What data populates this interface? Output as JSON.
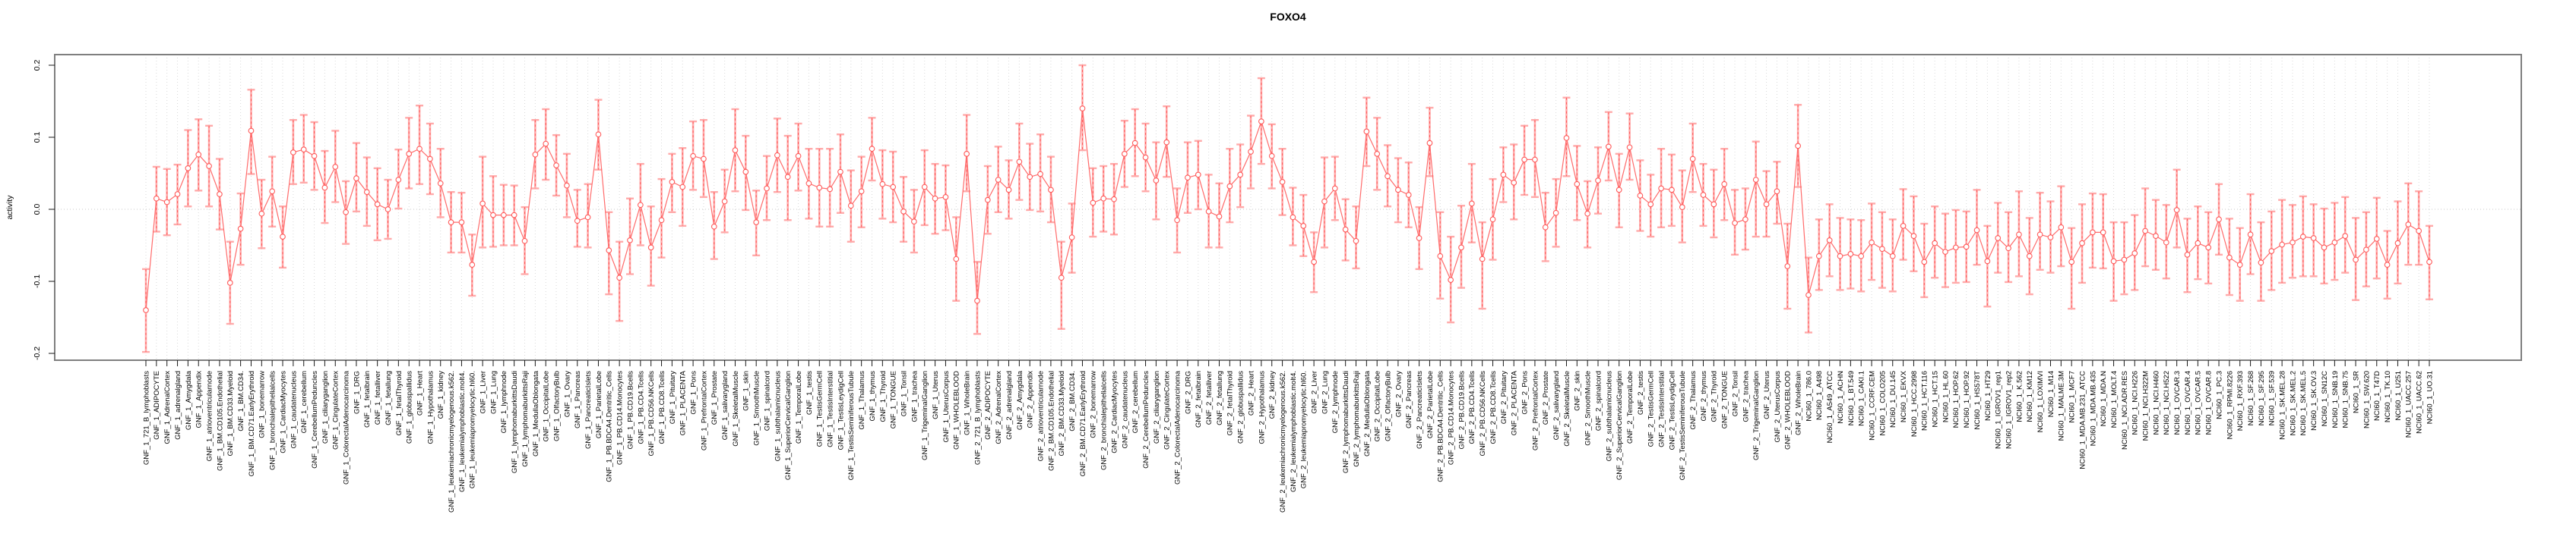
{
  "chart_data": {
    "type": "scatter",
    "subtype": "errorbar-series",
    "title": "FOXO4",
    "xlabel": "",
    "ylabel": "activity",
    "ylim": [
      -0.22,
      0.22
    ],
    "y_ticks": [
      "0.2",
      "0.1",
      "0.0",
      "-0.1",
      "-0.2"
    ],
    "y_tick_values": [
      0.2,
      0.1,
      0.0,
      -0.1,
      -0.2
    ],
    "grid": "vertical-dotted-per-category, dotted-zero-line",
    "legend": "none",
    "colors": {
      "point": "#ff5a5a",
      "line": "#ff6b6b",
      "whisker": "#ffaaaa",
      "grid": "#d9d9d9",
      "zero_line": "#c8c8c8",
      "box": "#7f7f7f",
      "tick": "#1a1a1a"
    },
    "categories": [
      "GNF_1_721_B_lymphoblasts",
      "GNF_1_ADIPOCYTE",
      "GNF_1_AdrenalCortex",
      "GNF_1_adrenalgland",
      "GNF_1_Amygdala",
      "GNF_1_Appendix",
      "GNF_1_atrioventricularnode",
      "GNF_1_BM.CD105.Endothelial",
      "GNF_1_BM.CD33.Myeloid",
      "GNF_1_BM.CD34.",
      "GNF_1_BM.CD71.EarlyErythroid",
      "GNF_1_bonemarrow",
      "GNF_1_bronchialepithelialcells",
      "GNF_1_CardiacMyocytes",
      "GNF_1_caudatenucleus",
      "GNF_1_cerebellum",
      "GNF_1_CerebellumPeduncles",
      "GNF_1_ciliaryganglion",
      "GNF_1_CingulateCortex",
      "GNF_1_ColorectalAdenocarcinoma",
      "GNF_1_DRG",
      "GNF_1_fetalbrain",
      "GNF_1_fetalliver",
      "GNF_1_fetallung",
      "GNF_1_fetalThyroid",
      "GNF_1_globuspallidus",
      "GNF_1_Heart",
      "GNF_1_Hypothalamus",
      "GNF_1_kidney",
      "GNF_1_leukemiachronicmyelogenous.k562.",
      "GNF_1_leukemialymphoblastic.molt4.",
      "GNF_1_leukemiapromyelocytic.hl60.",
      "GNF_1_Liver",
      "GNF_1_Lung",
      "GNF_1_lymphnode",
      "GNF_1_lymphomaburkittsDaudi",
      "GNF_1_lymphomaburkittsRaji",
      "GNF_1_MedullaOblongata",
      "GNF_1_OccipitalLobe",
      "GNF_1_OlfactoryBulb",
      "GNF_1_Ovary",
      "GNF_1_Pancreas",
      "GNF_1_PancreaticIslets",
      "GNF_1_ParietalLobe",
      "GNF_1_PB.BDCA4.Dentritic_Cells",
      "GNF_1_PB.CD14.Monocytes",
      "GNF_1_PB.CD19.Bcells",
      "GNF_1_PB.CD4.Tcells",
      "GNF_1_PB.CD56.NKCells",
      "GNF_1_PB.CD8.Tcells",
      "GNF_1_Pituitary",
      "GNF_1_PLACENTA",
      "GNF_1_Pons",
      "GNF_1_PrefrontalCortex",
      "GNF_1_Prostate",
      "GNF_1_salivarygland",
      "GNF_1_SkeletalMuscle",
      "GNF_1_skin",
      "GNF_1_SmoothMuscle",
      "GNF_1_spinalcord",
      "GNF_1_subthalamicnucleus",
      "GNF_1_SuperiorCervicalGanglion",
      "GNF_1_TemporalLobe",
      "GNF_1_testis",
      "GNF_1_TestisGermCell",
      "GNF_1_TestisInterstitial",
      "GNF_1_TestisLeydigCell",
      "GNF_1_TestisSeminiferousTubule",
      "GNF_1_Thalamus",
      "GNF_1_thymus",
      "GNF_1_Thyroid",
      "GNF_1_TONGUE",
      "GNF_1_Tonsil",
      "GNF_1_trachea",
      "GNF_1_TrigeminalGanglion",
      "GNF_1_Uterus",
      "GNF_1_UterusCorpus",
      "GNF_1_WHOLEBLOOD",
      "GNF_1_WholeBrain",
      "GNF_2_721_B_lymphoblasts",
      "GNF_2_ADIPOCYTE",
      "GNF_2_AdrenalCortex",
      "GNF_2_adrenalgland",
      "GNF_2_Amygdala",
      "GNF_2_Appendix",
      "GNF_2_atrioventricularnode",
      "GNF_2_BM.CD105.Endothelial",
      "GNF_2_BM.CD33.Myeloid",
      "GNF_2_BM.CD34.",
      "GNF_2_BM.CD71.EarlyErythroid",
      "GNF_2_bonemarrow",
      "GNF_2_bronchialepithelialcells",
      "GNF_2_CardiacMyocytes",
      "GNF_2_caudatenucleus",
      "GNF_2_cerebellum",
      "GNF_2_CerebellumPeduncles",
      "GNF_2_ciliaryganglion",
      "GNF_2_CingulateCortex",
      "GNF_2_ColorectalAdenocarcinoma",
      "GNF_2_DRG",
      "GNF_2_fetalbrain",
      "GNF_2_fetalliver",
      "GNF_2_fetallung",
      "GNF_2_fetalThyroid",
      "GNF_2_globuspallidus",
      "GNF_2_Heart",
      "GNF_2_Hypothalamus",
      "GNF_2_kidney",
      "GNF_2_leukemiachronicmyelogenous.k562.",
      "GNF_2_leukemialymphoblastic.molt4.",
      "GNF_2_leukemiapromyelocytic.hl60.",
      "GNF_2_Liver",
      "GNF_2_Lung",
      "GNF_2_lymphnode",
      "GNF_2_lymphomaburkittsDaudi",
      "GNF_2_lymphomaburkittsRaji",
      "GNF_2_MedullaOblongata",
      "GNF_2_OccipitalLobe",
      "GNF_2_OlfactoryBulb",
      "GNF_2_Ovary",
      "GNF_2_Pancreas",
      "GNF_2_PancreaticIslets",
      "GNF_2_ParietalLobe",
      "GNF_2_PB.BDCA4.Dentritic_Cells",
      "GNF_2_PB.CD14.Monocytes",
      "GNF_2_PB.CD19.Bcells",
      "GNF_2_PB.CD4.Tcells",
      "GNF_2_PB.CD56.NKCells",
      "GNF_2_PB.CD8.Tcells",
      "GNF_2_Pituitary",
      "GNF_2_PLACENTA",
      "GNF_2_Pons",
      "GNF_2_PrefrontalCortex",
      "GNF_2_Prostate",
      "GNF_2_salivarygland",
      "GNF_2_SkeletalMuscle",
      "GNF_2_skin",
      "GNF_2_SmoothMuscle",
      "GNF_2_spinalcord",
      "GNF_2_subthalamicnucleus",
      "GNF_2_SuperiorCervicalGanglion",
      "GNF_2_TemporalLobe",
      "GNF_2_testis",
      "GNF_2_TestisGermCell",
      "GNF_2_TestisInterstitial",
      "GNF_2_TestisLeydigCell",
      "GNF_2_TestisSeminiferousTubule",
      "GNF_2_Thalamus",
      "GNF_2_thymus",
      "GNF_2_Thyroid",
      "GNF_2_TONGUE",
      "GNF_2_Tonsil",
      "GNF_2_trachea",
      "GNF_2_TrigeminalGanglion",
      "GNF_2_Uterus",
      "GNF_2_UterusCorpus",
      "GNF_2_WHOLEBLOOD",
      "GNF_2_WholeBrain",
      "NCI60_1_786.0",
      "NCI60_1_A498",
      "NCI60_1_A549_ATCC",
      "NCI60_1_ACHN",
      "NCI60_1_BT.549",
      "NCI60_1_CAKI.1",
      "NCI60_1_CCRF.CEM",
      "NCI60_1_COLO205",
      "NCI60_1_DU.145",
      "NCI60_1_EKVX",
      "NCI60_1_HCC.2998",
      "NCI60_1_HCT.116",
      "NCI60_1_HCT.15",
      "NCI60_1_HL.60",
      "NCI60_1_HOP.62",
      "NCI60_1_HOP.92",
      "NCI60_1_HS578T",
      "NCI60_1_HT29",
      "NCI60_1_IGROV1_rep1",
      "NCI60_1_IGROV1_rep2",
      "NCI60_1_K.562",
      "NCI60_1_KM12",
      "NCI60_1_LOXIMVI",
      "NCI60_1_M14",
      "NCI60_1_MALME.3M",
      "NCI60_1_MCF7",
      "NCI60_1_MDA.MB.231_ATCC",
      "NCI60_1_MDA.MB.435",
      "NCI60_1_MDA.N",
      "NCI60_1_MOLT.4",
      "NCI60_1_NCI.ADR.RES",
      "NCI60_1_NCI.H226",
      "NCI60_1_NCI.H322M",
      "NCI60_1_NCI.H460",
      "NCI60_1_NCI.H522",
      "NCI60_1_OVCAR.3",
      "NCI60_1_OVCAR.4",
      "NCI60_1_OVCAR.5",
      "NCI60_1_OVCAR.8",
      "NCI60_1_PC.3",
      "NCI60_1_RPMI.8226",
      "NCI60_1_RXF.393",
      "NCI60_1_SF.268",
      "NCI60_1_SF.295",
      "NCI60_1_SF.539",
      "NCI60_1_SK.MEL.28",
      "NCI60_1_SK.MEL.2",
      "NCI60_1_SK.MEL.5",
      "NCI60_1_SK.OV.3",
      "NCI60_1_SN12C",
      "NCI60_1_SNB.19",
      "NCI60_1_SNB.75",
      "NCI60_1_SR",
      "NCI60_1_SW.620",
      "NCI60_1_T47D",
      "NCI60_1_TK.10",
      "NCI60_1_U251",
      "NCI60_1_UACC.257",
      "NCI60_1_UACC.62",
      "NCI60_1_UO.31"
    ],
    "series": [
      {
        "name": "activity",
        "values": [
          -0.14,
          0.015,
          0.01,
          0.021,
          0.057,
          0.076,
          0.06,
          0.021,
          -0.102,
          -0.027,
          0.109,
          -0.006,
          0.025,
          -0.038,
          0.079,
          0.083,
          0.074,
          0.03,
          0.059,
          -0.004,
          0.043,
          0.024,
          0.007,
          0.0,
          0.041,
          0.077,
          0.084,
          0.07,
          0.036,
          -0.018,
          -0.018,
          -0.077,
          0.008,
          -0.008,
          -0.008,
          -0.008,
          -0.044,
          0.076,
          0.091,
          0.061,
          0.033,
          -0.016,
          -0.011,
          0.104,
          -0.057,
          -0.095,
          -0.043,
          0.006,
          -0.053,
          -0.015,
          0.038,
          0.031,
          0.074,
          0.07,
          -0.024,
          0.011,
          0.082,
          0.052,
          -0.018,
          0.029,
          0.075,
          0.045,
          0.074,
          0.036,
          0.03,
          0.028,
          0.052,
          0.005,
          0.025,
          0.084,
          0.035,
          0.031,
          -0.003,
          -0.017,
          0.031,
          0.015,
          0.017,
          -0.069,
          0.077,
          -0.127,
          0.013,
          0.041,
          0.027,
          0.066,
          0.045,
          0.049,
          0.027,
          -0.095,
          -0.039,
          0.14,
          0.009,
          0.015,
          0.014,
          0.077,
          0.092,
          0.072,
          0.04,
          0.093,
          -0.015,
          0.044,
          0.048,
          -0.003,
          -0.01,
          0.032,
          0.048,
          0.08,
          0.122,
          0.074,
          0.038,
          -0.011,
          -0.023,
          -0.073,
          0.011,
          0.029,
          -0.028,
          -0.044,
          0.108,
          0.077,
          0.046,
          0.027,
          0.02,
          -0.04,
          0.092,
          -0.065,
          -0.098,
          -0.053,
          0.008,
          -0.069,
          -0.014,
          0.048,
          0.037,
          0.069,
          0.069,
          -0.025,
          -0.005,
          0.099,
          0.035,
          -0.006,
          0.04,
          0.087,
          0.027,
          0.086,
          0.019,
          0.007,
          0.029,
          0.027,
          0.003,
          0.07,
          0.02,
          0.007,
          0.035,
          -0.019,
          -0.014,
          0.041,
          0.007,
          0.025,
          -0.079,
          0.088,
          -0.119,
          -0.065,
          -0.043,
          -0.065,
          -0.062,
          -0.065,
          -0.046,
          -0.055,
          -0.065,
          -0.023,
          -0.037,
          -0.073,
          -0.047,
          -0.059,
          -0.053,
          -0.052,
          -0.029,
          -0.072,
          -0.04,
          -0.054,
          -0.035,
          -0.065,
          -0.035,
          -0.039,
          -0.025,
          -0.073,
          -0.047,
          -0.032,
          -0.032,
          -0.072,
          -0.07,
          -0.061,
          -0.03,
          -0.037,
          -0.046,
          -0.001,
          -0.063,
          -0.047,
          -0.053,
          -0.014,
          -0.067,
          -0.077,
          -0.035,
          -0.074,
          -0.058,
          -0.049,
          -0.046,
          -0.038,
          -0.04,
          -0.053,
          -0.046,
          -0.037,
          -0.07,
          -0.056,
          -0.041,
          -0.077,
          -0.047,
          -0.021,
          -0.03,
          -0.073
        ],
        "ci_low": [
          -0.198,
          -0.031,
          -0.036,
          -0.021,
          0.004,
          0.026,
          0.004,
          -0.028,
          -0.159,
          -0.077,
          0.049,
          -0.054,
          -0.024,
          -0.081,
          0.035,
          0.037,
          0.027,
          -0.019,
          0.01,
          -0.048,
          -0.003,
          -0.023,
          -0.043,
          -0.041,
          0.001,
          0.029,
          0.035,
          0.021,
          -0.011,
          -0.06,
          -0.06,
          -0.12,
          -0.053,
          -0.052,
          -0.05,
          -0.05,
          -0.09,
          0.029,
          0.041,
          0.019,
          -0.011,
          -0.052,
          -0.053,
          0.055,
          -0.118,
          -0.155,
          -0.09,
          -0.05,
          -0.106,
          -0.067,
          -0.004,
          -0.023,
          0.027,
          0.017,
          -0.069,
          -0.032,
          0.025,
          -0.001,
          -0.064,
          -0.015,
          0.024,
          -0.015,
          0.026,
          -0.013,
          -0.024,
          -0.024,
          -0.005,
          -0.045,
          -0.025,
          0.04,
          -0.013,
          -0.018,
          -0.045,
          -0.06,
          -0.022,
          -0.034,
          -0.029,
          -0.127,
          0.025,
          -0.173,
          -0.034,
          -0.004,
          -0.013,
          0.013,
          -0.001,
          -0.003,
          -0.018,
          -0.166,
          -0.088,
          0.082,
          -0.038,
          -0.031,
          -0.035,
          0.031,
          0.046,
          0.025,
          -0.014,
          0.045,
          -0.06,
          -0.005,
          0.0,
          -0.053,
          -0.053,
          -0.018,
          0.003,
          0.029,
          0.063,
          0.029,
          -0.008,
          -0.05,
          -0.065,
          -0.115,
          -0.053,
          -0.015,
          -0.071,
          -0.082,
          0.06,
          0.027,
          0.004,
          -0.018,
          -0.025,
          -0.083,
          0.046,
          -0.124,
          -0.157,
          -0.109,
          -0.046,
          -0.138,
          -0.07,
          0.01,
          -0.014,
          0.02,
          0.017,
          -0.072,
          -0.052,
          0.046,
          -0.015,
          -0.053,
          -0.006,
          0.04,
          -0.025,
          0.041,
          -0.03,
          -0.038,
          -0.025,
          -0.023,
          -0.046,
          0.024,
          -0.023,
          -0.039,
          -0.015,
          -0.063,
          -0.056,
          -0.038,
          -0.038,
          -0.02,
          -0.138,
          0.031,
          -0.171,
          -0.112,
          -0.093,
          -0.112,
          -0.11,
          -0.114,
          -0.098,
          -0.109,
          -0.114,
          -0.07,
          -0.086,
          -0.122,
          -0.095,
          -0.108,
          -0.102,
          -0.101,
          -0.077,
          -0.135,
          -0.088,
          -0.101,
          -0.093,
          -0.118,
          -0.084,
          -0.088,
          -0.079,
          -0.138,
          -0.102,
          -0.081,
          -0.082,
          -0.127,
          -0.118,
          -0.112,
          -0.079,
          -0.084,
          -0.096,
          -0.053,
          -0.115,
          -0.097,
          -0.103,
          -0.063,
          -0.119,
          -0.127,
          -0.09,
          -0.127,
          -0.112,
          -0.102,
          -0.095,
          -0.093,
          -0.093,
          -0.103,
          -0.098,
          -0.088,
          -0.126,
          -0.107,
          -0.096,
          -0.124,
          -0.103,
          -0.077,
          -0.077,
          -0.125
        ],
        "ci_high": [
          -0.083,
          0.059,
          0.056,
          0.062,
          0.11,
          0.125,
          0.116,
          0.07,
          -0.045,
          0.022,
          0.166,
          0.041,
          0.073,
          0.004,
          0.124,
          0.131,
          0.121,
          0.081,
          0.109,
          0.039,
          0.092,
          0.072,
          0.057,
          0.041,
          0.083,
          0.127,
          0.144,
          0.119,
          0.084,
          0.024,
          0.023,
          -0.035,
          0.073,
          0.046,
          0.034,
          0.033,
          0.003,
          0.124,
          0.139,
          0.103,
          0.077,
          0.027,
          0.035,
          0.152,
          -0.004,
          -0.045,
          0.015,
          0.063,
          0.004,
          0.042,
          0.077,
          0.085,
          0.122,
          0.124,
          0.024,
          0.055,
          0.139,
          0.102,
          0.026,
          0.074,
          0.126,
          0.102,
          0.119,
          0.084,
          0.084,
          0.084,
          0.104,
          0.054,
          0.073,
          0.127,
          0.082,
          0.08,
          0.045,
          0.027,
          0.082,
          0.063,
          0.061,
          -0.011,
          0.131,
          -0.073,
          0.06,
          0.087,
          0.068,
          0.119,
          0.091,
          0.104,
          0.073,
          -0.045,
          0.008,
          0.2,
          0.057,
          0.06,
          0.063,
          0.123,
          0.139,
          0.119,
          0.093,
          0.143,
          0.029,
          0.093,
          0.095,
          0.048,
          0.036,
          0.084,
          0.09,
          0.13,
          0.182,
          0.118,
          0.084,
          0.03,
          0.02,
          -0.032,
          0.072,
          0.073,
          0.014,
          0.004,
          0.155,
          0.127,
          0.089,
          0.071,
          0.065,
          0.003,
          0.141,
          -0.004,
          -0.038,
          0.005,
          0.063,
          -0.018,
          0.042,
          0.086,
          0.09,
          0.116,
          0.124,
          0.023,
          0.042,
          0.155,
          0.088,
          0.039,
          0.086,
          0.135,
          0.077,
          0.133,
          0.068,
          0.048,
          0.084,
          0.076,
          0.054,
          0.119,
          0.063,
          0.055,
          0.084,
          0.027,
          0.029,
          0.094,
          0.053,
          0.066,
          -0.02,
          0.145,
          -0.067,
          -0.014,
          0.007,
          -0.012,
          -0.014,
          -0.015,
          0.008,
          -0.004,
          -0.014,
          0.028,
          0.018,
          -0.02,
          0.004,
          -0.006,
          -0.001,
          -0.003,
          0.027,
          -0.023,
          0.009,
          -0.004,
          0.025,
          -0.012,
          0.023,
          0.011,
          0.032,
          -0.026,
          0.007,
          0.022,
          0.021,
          -0.018,
          -0.018,
          -0.008,
          0.029,
          0.013,
          0.006,
          0.055,
          -0.013,
          0.004,
          -0.004,
          0.035,
          -0.013,
          -0.026,
          0.021,
          -0.018,
          -0.003,
          0.013,
          0.006,
          0.018,
          0.007,
          0.001,
          0.009,
          0.017,
          -0.012,
          -0.004,
          0.016,
          -0.03,
          0.011,
          0.036,
          0.025,
          -0.023
        ]
      }
    ]
  }
}
